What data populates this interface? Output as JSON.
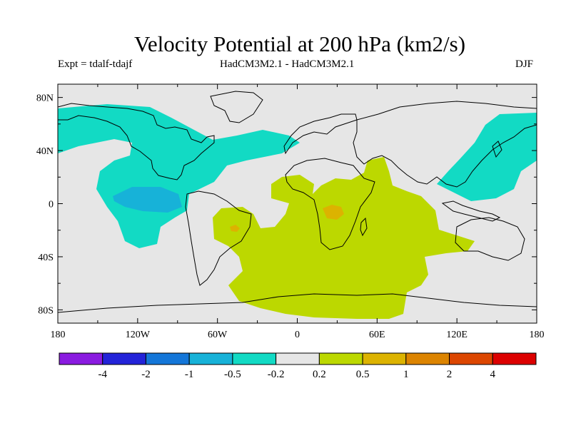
{
  "title": "Velocity Potential at 200 hPa (km2/s)",
  "experiment": "Expt = tdalf-tdajf",
  "model": "HadCM3M2.1 - HadCM3M2.1",
  "season": "DJF",
  "map": {
    "lat_ticks": [
      "80N",
      "40N",
      "0",
      "40S",
      "80S"
    ],
    "lon_ticks": [
      "180",
      "120W",
      "60W",
      "0",
      "60E",
      "120E",
      "180"
    ],
    "background_color": "#e6e6e6",
    "coast_color": "#000000"
  },
  "colorbar": {
    "colors": [
      "#8a1be0",
      "#2323d8",
      "#1476d8",
      "#17b2d8",
      "#12dac4",
      "#e6e6e6",
      "#bcd800",
      "#dcb300",
      "#dc8400",
      "#dc4600",
      "#dc0000"
    ],
    "labels": [
      "-4",
      "-2",
      "-1",
      "-0.5",
      "-0.2",
      "0.2",
      "0.5",
      "1",
      "2",
      "4"
    ]
  }
}
